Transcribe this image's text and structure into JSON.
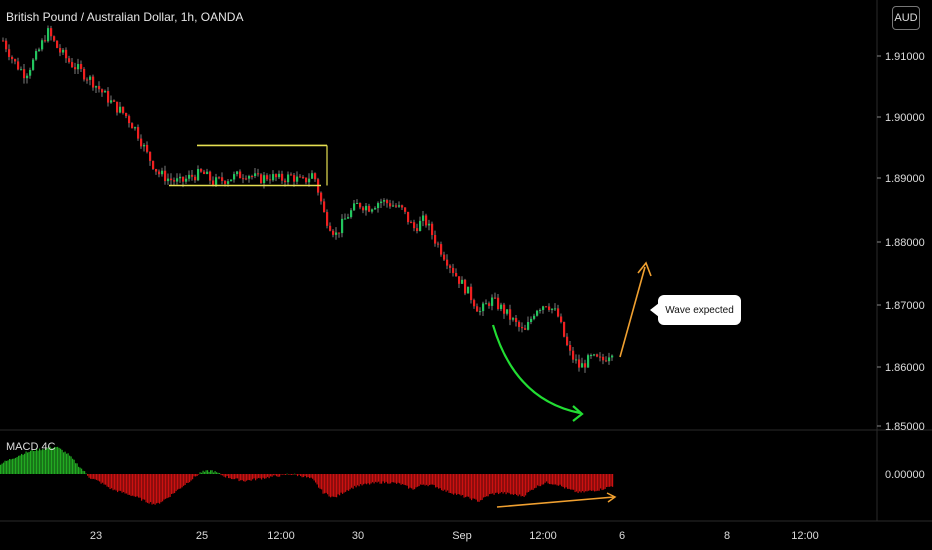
{
  "header": {
    "title": "British Pound / Australian Dollar, 1h, OANDA",
    "currency_button": "AUD"
  },
  "annotation": {
    "callout_text": "Wave expected"
  },
  "indicator": {
    "label": "MACD 4C"
  },
  "colors": {
    "up_candle": "#22c55e",
    "down_candle": "#ef2020",
    "wick": "#9a9a9a",
    "channel": "#e6e052",
    "curve_arrow": "#22dd33",
    "expect_arrow": "#f0a030",
    "macd_positive": "#22aa22",
    "macd_negative": "#cc1111"
  },
  "chart_data": {
    "type": "candlestick",
    "title": "British Pound / Australian Dollar, 1h, OANDA",
    "price_axis": {
      "ticks": [
        "1.91000",
        "1.90000",
        "1.89000",
        "1.88000",
        "1.87000",
        "1.86000",
        "1.85000"
      ],
      "ylim": [
        1.8495,
        1.9195
      ]
    },
    "macd_axis": {
      "ticks": [
        "0.00000"
      ]
    },
    "x_ticks": [
      "23",
      "25",
      "12:00",
      "30",
      "Sep",
      "12:00",
      "6",
      "8",
      "12:00"
    ],
    "close_path": [
      [
        0,
        1.9125
      ],
      [
        1,
        1.909
      ],
      [
        2,
        1.907
      ],
      [
        3,
        1.91
      ],
      [
        4,
        1.914
      ],
      [
        5,
        1.911
      ],
      [
        6,
        1.909
      ],
      [
        7,
        1.9075
      ],
      [
        8,
        1.906
      ],
      [
        9,
        1.904
      ],
      [
        10,
        1.902
      ],
      [
        11,
        1.9005
      ],
      [
        12,
        1.898
      ],
      [
        13,
        1.894
      ],
      [
        14,
        1.891
      ],
      [
        15,
        1.89
      ],
      [
        16,
        1.8895
      ],
      [
        17,
        1.8905
      ],
      [
        18,
        1.891
      ],
      [
        19,
        1.8895
      ],
      [
        20,
        1.89
      ],
      [
        21,
        1.8905
      ],
      [
        22,
        1.891
      ],
      [
        23,
        1.89
      ],
      [
        24,
        1.8905
      ],
      [
        25,
        1.89
      ],
      [
        26,
        1.8905
      ],
      [
        27,
        1.8895
      ],
      [
        28,
        1.891
      ],
      [
        29,
        1.884
      ],
      [
        30,
        1.881
      ],
      [
        31,
        1.884
      ],
      [
        32,
        1.886
      ],
      [
        33,
        1.8855
      ],
      [
        34,
        1.8865
      ],
      [
        35,
        1.886
      ],
      [
        36,
        1.885
      ],
      [
        37,
        1.882
      ],
      [
        38,
        1.8835
      ],
      [
        39,
        1.88
      ],
      [
        40,
        1.877
      ],
      [
        41,
        1.874
      ],
      [
        42,
        1.8715
      ],
      [
        43,
        1.8685
      ],
      [
        44,
        1.8705
      ],
      [
        45,
        1.869
      ],
      [
        46,
        1.867
      ],
      [
        47,
        1.865
      ],
      [
        48,
        1.869
      ],
      [
        49,
        1.87
      ],
      [
        50,
        1.868
      ],
      [
        51,
        1.862
      ],
      [
        52,
        1.8595
      ],
      [
        53,
        1.861
      ],
      [
        54,
        1.8605
      ],
      [
        55,
        1.8625
      ]
    ],
    "channel": {
      "upper": 1.8955,
      "lower": 1.889
    },
    "macd_histogram": [
      0.0006,
      0.0009,
      0.0012,
      0.0014,
      0.0015,
      0.0016,
      0.0012,
      0.0005,
      -0.0002,
      -0.0005,
      -0.0009,
      -0.0011,
      -0.0013,
      -0.0016,
      -0.0018,
      -0.0014,
      -0.0009,
      -0.0004,
      0.0001,
      0.0002,
      -0.0001,
      -0.0003,
      -0.0004,
      -0.0003,
      -0.0002,
      -0.0001,
      0.0,
      -0.0001,
      -0.0003,
      -0.0011,
      -0.0014,
      -0.001,
      -0.0007,
      -0.0006,
      -0.0005,
      -0.0005,
      -0.0006,
      -0.0009,
      -0.0006,
      -0.0007,
      -0.001,
      -0.0012,
      -0.0014,
      -0.0016,
      -0.0012,
      -0.0011,
      -0.0012,
      -0.0013,
      -0.0008,
      -0.0005,
      -0.0006,
      -0.0009,
      -0.0011,
      -0.001,
      -0.0009,
      -0.0007
    ],
    "grid": false
  }
}
